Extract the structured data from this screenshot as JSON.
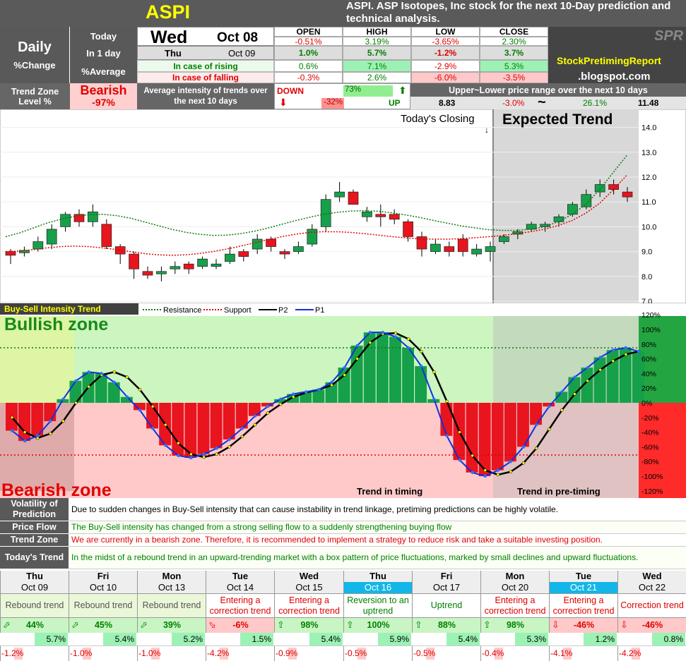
{
  "header": {
    "ticker": "ASPI",
    "description": "ASPI. ASP Isotopes, Inc stock for the next 10-Day prediction and technical analysis."
  },
  "summary": {
    "daily": "Daily",
    "pct_change": "%Change",
    "today_label": "Today",
    "today_day": "Wed",
    "today_date": "Oct 08",
    "in1day_label": "In 1 day",
    "in1day_day": "Thu",
    "in1day_date": "Oct 09",
    "avg_label": "%Average",
    "rising_label": "In case of rising",
    "falling_label": "In case of falling",
    "cols": [
      "OPEN",
      "HIGH",
      "LOW",
      "CLOSE"
    ],
    "today": [
      "-0.51%",
      "3.19%",
      "-3.65%",
      "2.30%"
    ],
    "in1day": [
      "1.0%",
      "5.7%",
      "-1.2%",
      "3.7%"
    ],
    "rising": [
      "0.6%",
      "7.1%",
      "-2.9%",
      "5.3%"
    ],
    "falling": [
      "-0.3%",
      "2.6%",
      "-6.0%",
      "-3.5%"
    ],
    "brand1": "StockPretimingReport",
    "brand2": ".blogspot.com",
    "logo": "SPR"
  },
  "trendzone": {
    "label1": "Trend Zone",
    "label2": "Level %",
    "state": "Bearish",
    "level": "-97%",
    "avg_text": "Average intensity of trends over the next 10 days",
    "down": "DOWN",
    "down_pct": "-32%",
    "up": "UP",
    "up_pct": "73%",
    "range_title": "Upper~Lower price range over the next 10 days",
    "range_low": "8.83",
    "range_low_pct": "-3.0%",
    "tilde": "~",
    "range_high_pct": "26.1%",
    "range_high": "11.48"
  },
  "price_chart": {
    "today_closing": "Today's Closing",
    "expected": "Expected Trend",
    "yticks": [
      "14.0",
      "13.0",
      "12.0",
      "11.0",
      "10.0",
      "9.0",
      "8.0",
      "7.0"
    ]
  },
  "intensity": {
    "title": "Buy-Sell Intensity Trend",
    "legend": [
      "Resistance",
      "Support",
      "P2",
      "P1"
    ],
    "bull": "Bullish zone",
    "bear": "Bearish zone",
    "timing": "Trend in timing",
    "pretiming": "Trend in pre-timing",
    "yticks": [
      "120%",
      "100%",
      "80%",
      "60%",
      "40%",
      "20%",
      "0%",
      "-20%",
      "-40%",
      "-60%",
      "-80%",
      "-100%",
      "-120%"
    ]
  },
  "notes": [
    {
      "label": "Volatility of Prediction",
      "text": "Due to sudden changes in Buy-Sell intensity that can cause instability in trend linkage, pretiming predictions can be highly volatile.",
      "color": "#000000"
    },
    {
      "label": "Price Flow",
      "text": "The Buy-Sell intensity has changed from a strong selling flow to a suddenly strengthening buying flow",
      "color": "#008000"
    },
    {
      "label": "Trend Zone",
      "text": "We are currently in a bearish zone. Therefore, it is recommended to implement a strategy to reduce risk and take a suitable investing position.",
      "color": "#e00000"
    },
    {
      "label": "Today's Trend",
      "text": "In the midst of a rebound trend in an upward-trending market with a box pattern of price fluctuations, marked by small declines and upward fluctuations.",
      "color": "#008000"
    }
  ],
  "forecast": [
    {
      "day": "Thu",
      "date": "Oct 09",
      "trend": "Rebound trend",
      "tcolor": "#555555",
      "arrow": "⬀",
      "pct": "44%",
      "hi": "5.7%",
      "lo": "-1.2%"
    },
    {
      "day": "Fri",
      "date": "Oct 10",
      "trend": "Rebound trend",
      "tcolor": "#555555",
      "arrow": "⬀",
      "pct": "45%",
      "hi": "5.4%",
      "lo": "-1.0%"
    },
    {
      "day": "Mon",
      "date": "Oct 13",
      "trend": "Rebound trend",
      "tcolor": "#555555",
      "arrow": "⬀",
      "pct": "39%",
      "hi": "5.2%",
      "lo": "-1.0%"
    },
    {
      "day": "Tue",
      "date": "Oct 14",
      "trend": "Entering a correction trend",
      "tcolor": "#e00000",
      "arrow": "⬂",
      "pct": "-6%",
      "hi": "1.5%",
      "lo": "-4.2%"
    },
    {
      "day": "Wed",
      "date": "Oct 15",
      "trend": "Entering a correction trend",
      "tcolor": "#e00000",
      "arrow": "⇧",
      "pct": "98%",
      "hi": "5.4%",
      "lo": "-0.9%"
    },
    {
      "day": "Thu",
      "date": "Oct 16",
      "trend": "Reversion to an uptrend",
      "tcolor": "#008000",
      "arrow": "⇧",
      "pct": "100%",
      "hi": "5.9%",
      "lo": "-0.5%"
    },
    {
      "day": "Fri",
      "date": "Oct 17",
      "trend": "Uptrend",
      "tcolor": "#008000",
      "arrow": "⇧",
      "pct": "88%",
      "hi": "5.4%",
      "lo": "-0.5%"
    },
    {
      "day": "Mon",
      "date": "Oct 20",
      "trend": "Entering a correction trend",
      "tcolor": "#e00000",
      "arrow": "⇧",
      "pct": "98%",
      "hi": "5.3%",
      "lo": "-0.4%"
    },
    {
      "day": "Tue",
      "date": "Oct 21",
      "trend": "Entering a correction trend",
      "tcolor": "#e00000",
      "arrow": "⇩",
      "pct": "-46%",
      "hi": "1.2%",
      "lo": "-4.1%"
    },
    {
      "day": "Wed",
      "date": "Oct 22",
      "trend": "Correction trend",
      "tcolor": "#e00000",
      "arrow": "⇩",
      "pct": "-46%",
      "hi": "0.8%",
      "lo": "-4.2%"
    }
  ],
  "chart_data": [
    {
      "type": "candlestick",
      "title": "",
      "ylim": [
        7,
        14.5
      ],
      "candles": [
        [
          9.0,
          8.85,
          9.1,
          8.5
        ],
        [
          8.95,
          9.05,
          9.2,
          8.8
        ],
        [
          9.1,
          9.4,
          9.6,
          9.0
        ],
        [
          9.3,
          9.9,
          10.1,
          9.1
        ],
        [
          10.0,
          10.5,
          10.6,
          9.8
        ],
        [
          10.5,
          10.2,
          10.7,
          10.0
        ],
        [
          10.2,
          10.6,
          10.9,
          10.0
        ],
        [
          10.1,
          9.2,
          10.3,
          9.1
        ],
        [
          9.2,
          8.9,
          9.3,
          8.5
        ],
        [
          8.9,
          8.3,
          9.0,
          7.9
        ],
        [
          8.2,
          8.05,
          8.4,
          7.9
        ],
        [
          8.1,
          8.2,
          8.4,
          7.8
        ],
        [
          8.3,
          8.4,
          8.6,
          8.1
        ],
        [
          8.5,
          8.3,
          8.6,
          8.1
        ],
        [
          8.4,
          8.7,
          8.8,
          8.3
        ],
        [
          8.4,
          8.5,
          8.7,
          8.3
        ],
        [
          8.6,
          8.9,
          9.2,
          8.5
        ],
        [
          9.0,
          8.8,
          9.1,
          8.6
        ],
        [
          9.1,
          9.5,
          9.7,
          8.9
        ],
        [
          9.5,
          9.2,
          9.6,
          9.0
        ],
        [
          9.0,
          8.9,
          9.1,
          8.7
        ],
        [
          9.0,
          9.2,
          9.4,
          8.9
        ],
        [
          9.3,
          9.9,
          10.1,
          9.2
        ],
        [
          10.0,
          11.1,
          11.3,
          9.8
        ],
        [
          11.2,
          11.4,
          11.8,
          11.0
        ],
        [
          11.4,
          10.9,
          11.5,
          10.9
        ],
        [
          10.4,
          10.6,
          10.8,
          10.2
        ],
        [
          10.5,
          10.4,
          10.9,
          10.0
        ],
        [
          10.5,
          10.3,
          10.7,
          10.1
        ],
        [
          10.2,
          9.6,
          10.3,
          9.4
        ],
        [
          9.6,
          9.1,
          9.8,
          8.8
        ],
        [
          9.0,
          9.3,
          9.5,
          8.9
        ],
        [
          9.2,
          9.0,
          9.4,
          8.8
        ],
        [
          9.5,
          9.0,
          9.7,
          8.8
        ],
        [
          8.9,
          9.1,
          9.3,
          8.8
        ],
        [
          9.0,
          9.2,
          9.4,
          8.6
        ]
      ],
      "forecast_candles": [
        [
          9.4,
          9.6,
          9.7,
          9.3
        ],
        [
          9.7,
          9.8,
          9.9,
          9.5
        ],
        [
          9.9,
          10.1,
          10.2,
          9.8
        ],
        [
          10.0,
          10.1,
          10.2,
          9.8
        ],
        [
          10.2,
          10.4,
          10.5,
          10.0
        ],
        [
          10.5,
          10.9,
          11.0,
          10.4
        ],
        [
          10.8,
          11.3,
          11.5,
          10.7
        ],
        [
          11.4,
          11.7,
          11.9,
          11.2
        ],
        [
          11.7,
          11.5,
          11.9,
          11.3
        ],
        [
          11.4,
          11.2,
          11.6,
          11.0
        ]
      ],
      "resistance": [
        9.6,
        9.75,
        9.95,
        10.15,
        10.3,
        10.42,
        10.48,
        10.5,
        10.45,
        10.35,
        10.2,
        10.05,
        9.9,
        9.78,
        9.7,
        9.65,
        9.66,
        9.72,
        9.82,
        9.95,
        10.1,
        10.25,
        10.38,
        10.5,
        10.58,
        10.63,
        10.65,
        10.62,
        10.56,
        10.47,
        10.37,
        10.25,
        10.14,
        10.03,
        9.95,
        9.88,
        9.85,
        9.85,
        9.9,
        10.0,
        10.2,
        10.5,
        10.9,
        11.5,
        12.2,
        12.9
      ],
      "support": [
        9.0,
        9.02,
        9.08,
        9.15,
        9.2,
        9.22,
        9.2,
        9.15,
        9.08,
        9.0,
        8.92,
        8.87,
        8.85,
        8.87,
        8.92,
        9.0,
        9.1,
        9.22,
        9.35,
        9.48,
        9.6,
        9.7,
        9.77,
        9.8,
        9.8,
        9.77,
        9.72,
        9.66,
        9.6,
        9.55,
        9.51,
        9.5,
        9.5,
        9.52,
        9.56,
        9.6,
        9.65,
        9.72,
        9.8,
        9.9,
        10.05,
        10.25,
        10.55,
        10.95,
        11.5,
        12.1
      ]
    },
    {
      "type": "bar",
      "title": "Buy-Sell Intensity Trend",
      "ylim": [
        -120,
        120
      ],
      "values": [
        -38,
        -52,
        -45,
        -25,
        5,
        30,
        42,
        40,
        28,
        8,
        -10,
        -35,
        -58,
        -72,
        -75,
        -70,
        -62,
        -50,
        -35,
        -18,
        -5,
        5,
        12,
        15,
        18,
        28,
        48,
        78,
        96,
        96,
        90,
        75,
        50,
        5,
        -45,
        -78,
        -95,
        -100,
        -92,
        -80,
        -60,
        -30,
        -5,
        15,
        35,
        48,
        62,
        72,
        75,
        70
      ],
      "p1": [
        -38,
        -52,
        -45,
        -25,
        5,
        30,
        42,
        40,
        28,
        8,
        -10,
        -35,
        -58,
        -72,
        -75,
        -70,
        -62,
        -50,
        -35,
        -18,
        -5,
        5,
        12,
        15,
        18,
        28,
        48,
        78,
        96,
        96,
        90,
        75,
        50,
        5,
        -45,
        -78,
        -95,
        -100,
        -92,
        -80,
        -60,
        -30,
        -5,
        15,
        35,
        48,
        62,
        72,
        75,
        70
      ],
      "p2": [
        -20,
        -40,
        -48,
        -42,
        -25,
        0,
        22,
        38,
        42,
        35,
        18,
        -5,
        -30,
        -55,
        -70,
        -74,
        -70,
        -60,
        -46,
        -30,
        -14,
        -2,
        8,
        14,
        18,
        24,
        38,
        60,
        82,
        94,
        95,
        87,
        70,
        42,
        2,
        -40,
        -72,
        -92,
        -98,
        -94,
        -82,
        -62,
        -36,
        -10,
        12,
        30,
        45,
        57,
        66,
        70
      ]
    }
  ]
}
